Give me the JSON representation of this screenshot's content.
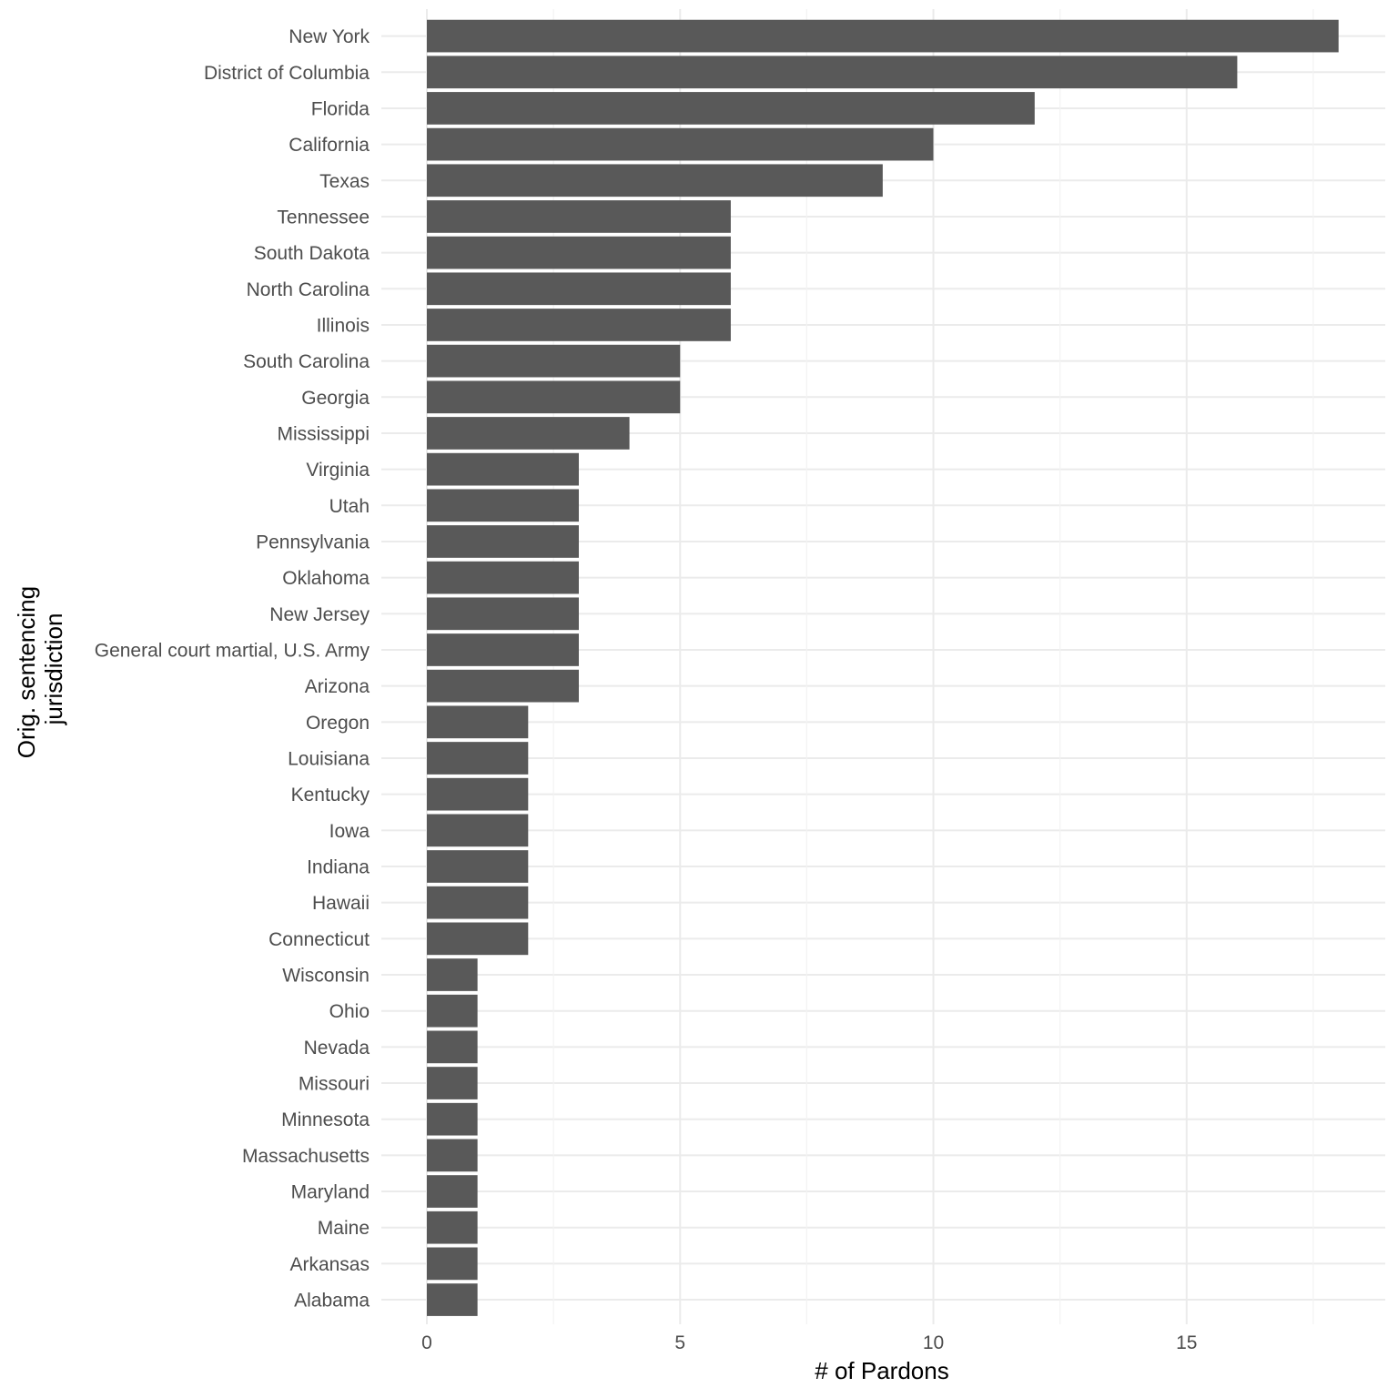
{
  "chart_data": {
    "type": "bar",
    "orientation": "horizontal",
    "xlabel": "# of Pardons",
    "ylabel_lines": [
      "Orig. sentencing",
      "jurisdiction"
    ],
    "xlim": [
      0,
      18
    ],
    "xticks": [
      0,
      5,
      10,
      15
    ],
    "grid": true,
    "bar_color": "#595959",
    "categories": [
      "New York",
      "District of Columbia",
      "Florida",
      "California",
      "Texas",
      "Tennessee",
      "South Dakota",
      "North Carolina",
      "Illinois",
      "South Carolina",
      "Georgia",
      "Mississippi",
      "Virginia",
      "Utah",
      "Pennsylvania",
      "Oklahoma",
      "New Jersey",
      "General court martial, U.S. Army",
      "Arizona",
      "Oregon",
      "Louisiana",
      "Kentucky",
      "Iowa",
      "Indiana",
      "Hawaii",
      "Connecticut",
      "Wisconsin",
      "Ohio",
      "Nevada",
      "Missouri",
      "Minnesota",
      "Massachusetts",
      "Maryland",
      "Maine",
      "Arkansas",
      "Alabama"
    ],
    "values": [
      18,
      16,
      12,
      10,
      9,
      6,
      6,
      6,
      6,
      5,
      5,
      4,
      3,
      3,
      3,
      3,
      3,
      3,
      3,
      2,
      2,
      2,
      2,
      2,
      2,
      2,
      1,
      1,
      1,
      1,
      1,
      1,
      1,
      1,
      1,
      1
    ]
  }
}
